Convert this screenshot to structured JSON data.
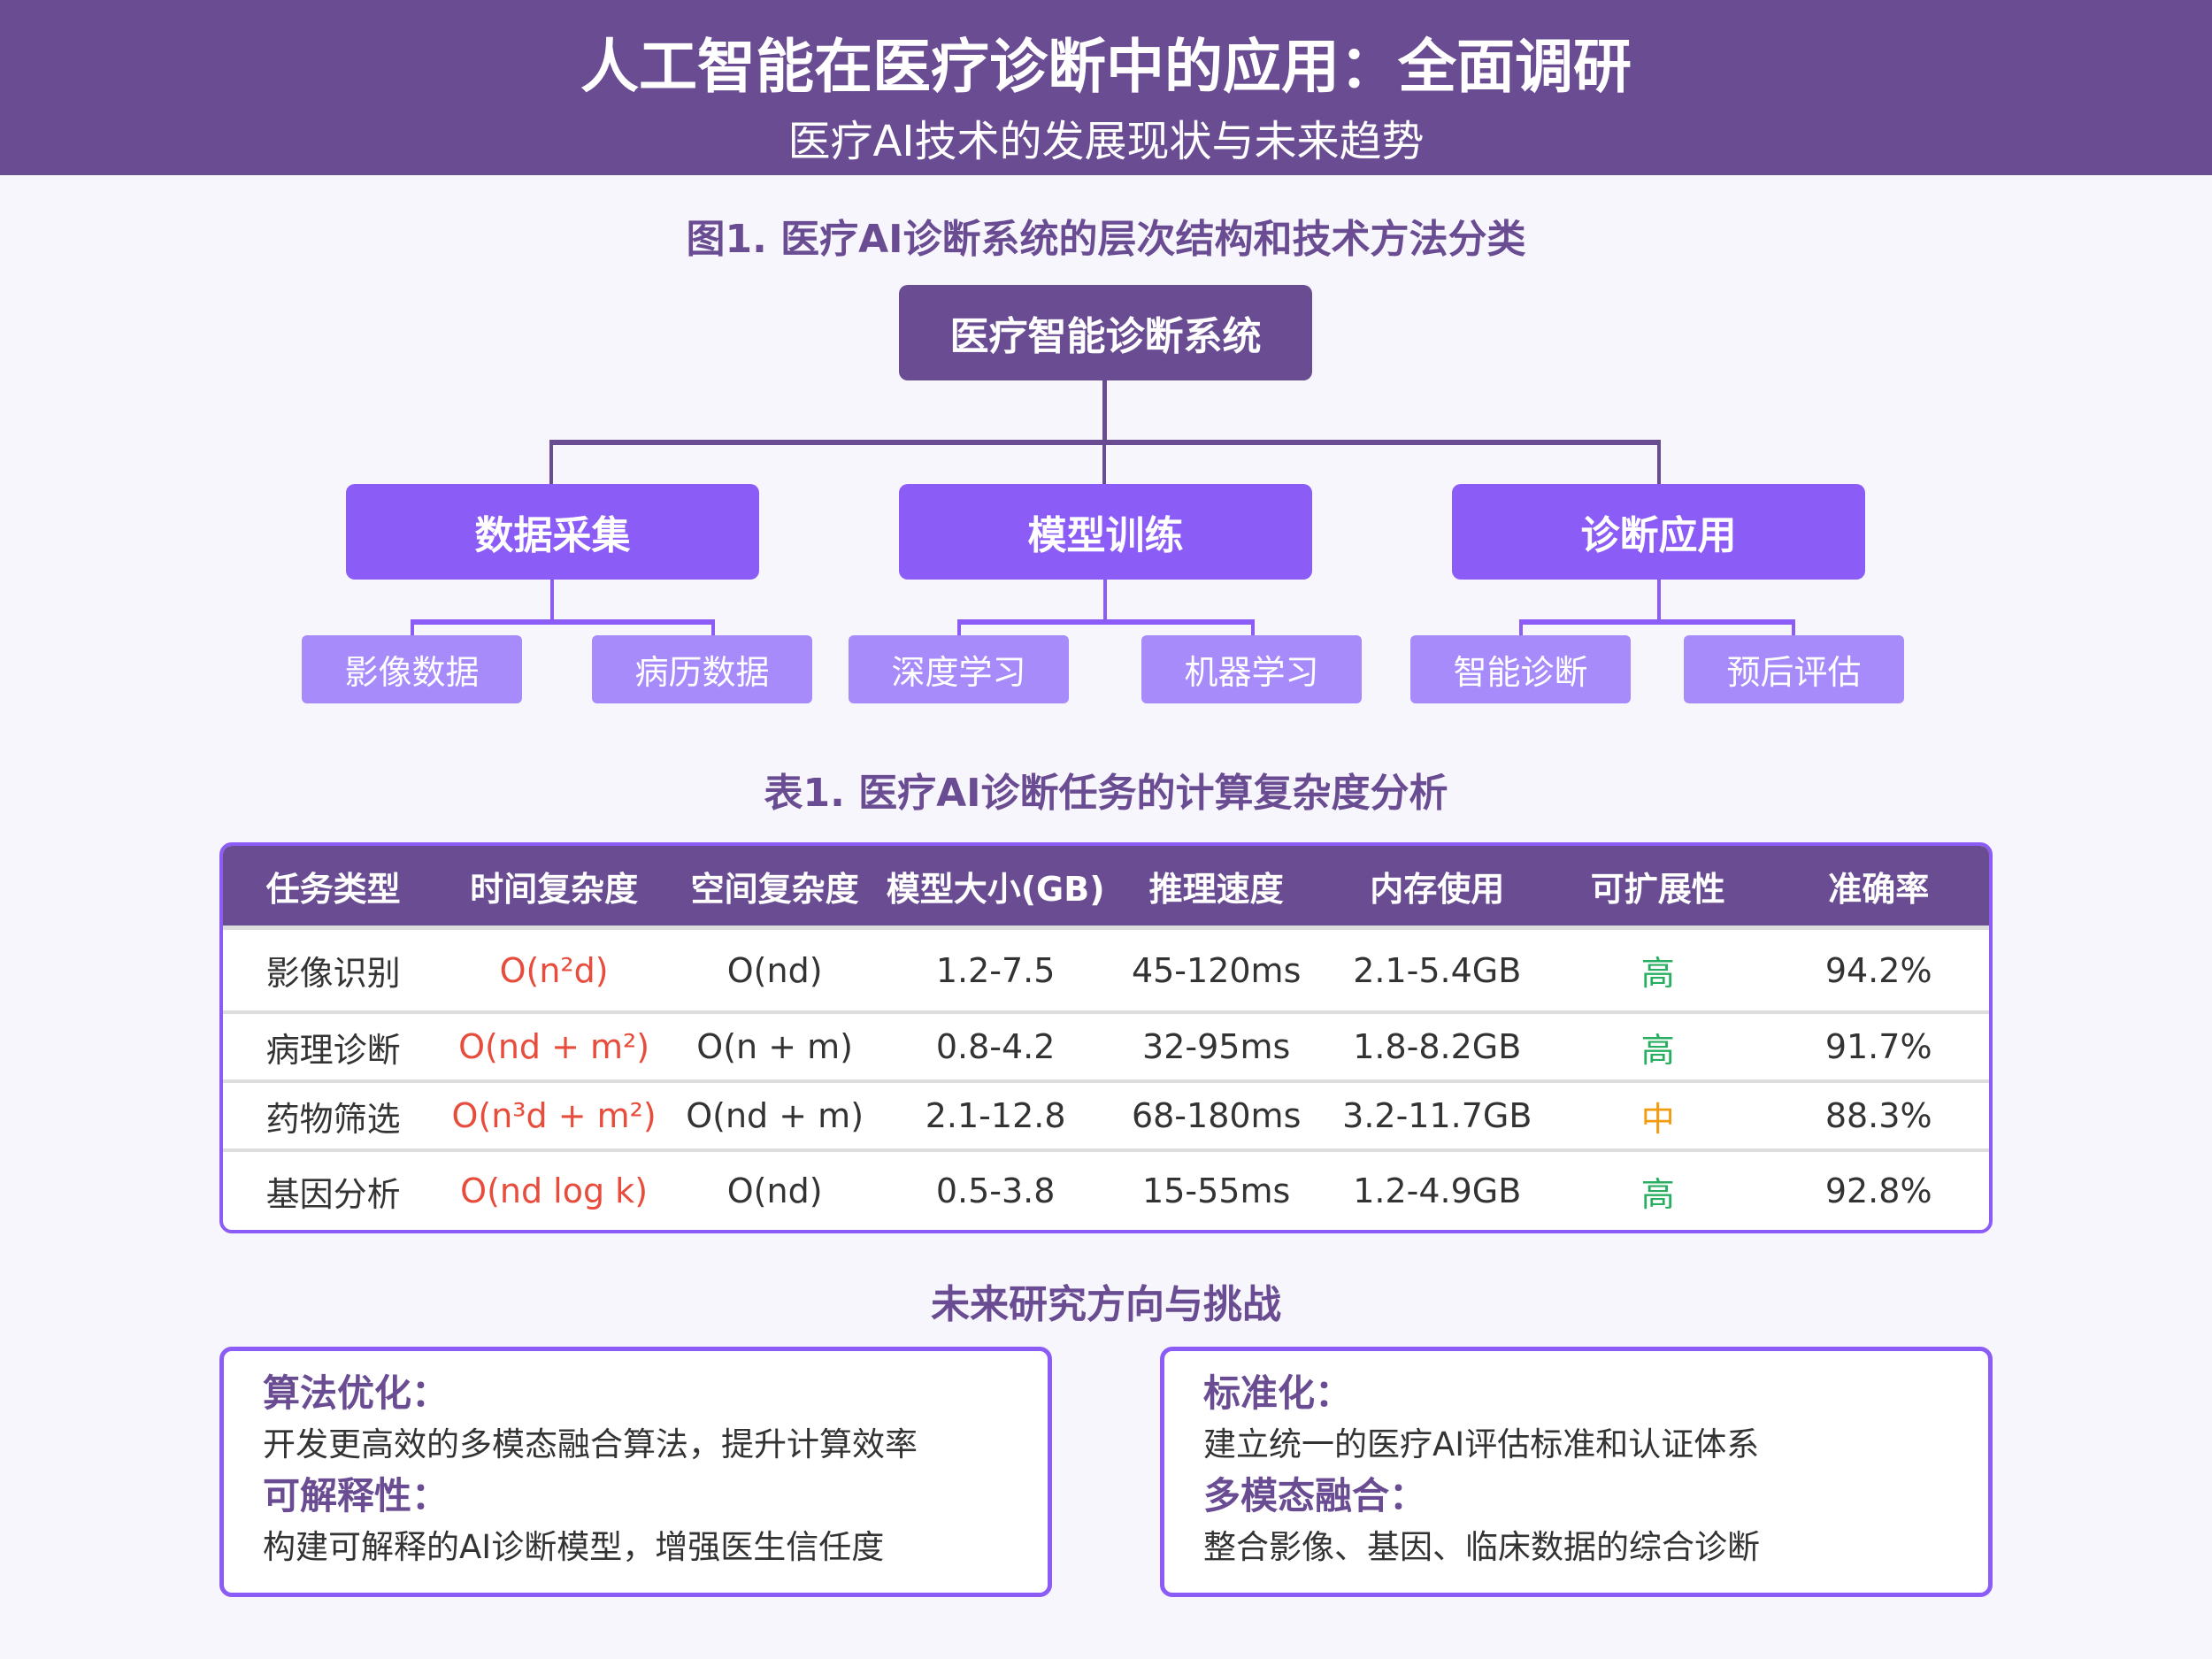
{
  "header": {
    "title": "人工智能在医疗诊断中的应用：全面调研",
    "subtitle": "医疗AI技术的发展现状与未来趋势"
  },
  "figure": {
    "caption": "图1. 医疗AI诊断系统的层次结构和技术方法分类",
    "root": "医疗智能诊断系统",
    "branches": [
      {
        "label": "数据采集",
        "children": [
          "影像数据",
          "病历数据"
        ]
      },
      {
        "label": "模型训练",
        "children": [
          "深度学习",
          "机器学习"
        ]
      },
      {
        "label": "诊断应用",
        "children": [
          "智能诊断",
          "预后评估"
        ]
      }
    ]
  },
  "table": {
    "caption": "表1. 医疗AI诊断任务的计算复杂度分析",
    "headers": [
      "任务类型",
      "时间复杂度",
      "空间复杂度",
      "模型大小(GB)",
      "推理速度",
      "内存使用",
      "可扩展性",
      "准确率"
    ],
    "rows": [
      [
        "影像识别",
        "O(n²d)",
        "O(nd)",
        "1.2-7.5",
        "45-120ms",
        "2.1-5.4GB",
        "高",
        "94.2%"
      ],
      [
        "病理诊断",
        "O(nd + m²)",
        "O(n + m)",
        "0.8-4.2",
        "32-95ms",
        "1.8-8.2GB",
        "高",
        "91.7%"
      ],
      [
        "药物筛选",
        "O(n³d + m²)",
        "O(nd + m)",
        "2.1-12.8",
        "68-180ms",
        "3.2-11.7GB",
        "中",
        "88.3%"
      ],
      [
        "基因分析",
        "O(nd log k)",
        "O(nd)",
        "0.5-3.8",
        "15-55ms",
        "1.2-4.9GB",
        "高",
        "92.8%"
      ]
    ]
  },
  "future": {
    "title": "未来研究方向与挑战",
    "left": [
      {
        "label": "算法优化：",
        "text": "开发更高效的多模态融合算法，提升计算效率"
      },
      {
        "label": "可解释性：",
        "text": "构建可解释的AI诊断模型，增强医生信任度"
      }
    ],
    "right": [
      {
        "label": "标准化：",
        "text": "建立统一的医疗AI评估标准和认证体系"
      },
      {
        "label": "多模态融合：",
        "text": "整合影像、基因、临床数据的综合诊断"
      }
    ]
  },
  "colors": {
    "primary": "#6a4c93",
    "accent": "#8b5cf6",
    "light": "#a78bfa",
    "high": "#27ae60",
    "medium": "#f39c12",
    "complexity": "#e74c3c"
  }
}
